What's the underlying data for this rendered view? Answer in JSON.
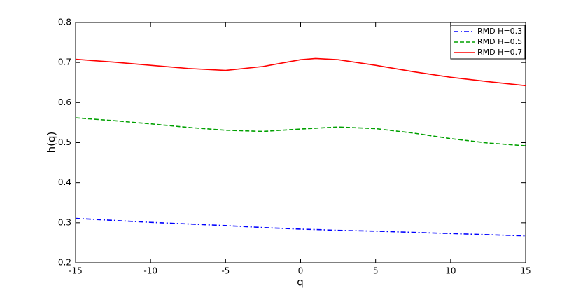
{
  "chart_data": {
    "type": "line",
    "xlabel": "q",
    "ylabel": "h(q)",
    "x": [
      -15,
      -12.5,
      -10,
      -7.5,
      -5,
      -2.5,
      0,
      1,
      2.5,
      5,
      7.5,
      10,
      12.5,
      15
    ],
    "series": [
      {
        "name": "RMD H=0.3",
        "color": "#0000ff",
        "dash": "dashdot",
        "values": [
          0.311,
          0.306,
          0.301,
          0.297,
          0.293,
          0.288,
          0.284,
          0.283,
          0.281,
          0.279,
          0.276,
          0.273,
          0.27,
          0.267
        ]
      },
      {
        "name": "RMD H=0.5",
        "color": "#00a000",
        "dash": "dashed",
        "values": [
          0.562,
          0.555,
          0.547,
          0.538,
          0.531,
          0.528,
          0.534,
          0.536,
          0.539,
          0.535,
          0.524,
          0.51,
          0.499,
          0.492
        ]
      },
      {
        "name": "RMD H=0.7",
        "color": "#ff0000",
        "dash": "solid",
        "values": [
          0.708,
          0.701,
          0.693,
          0.685,
          0.68,
          0.69,
          0.707,
          0.71,
          0.707,
          0.693,
          0.677,
          0.663,
          0.652,
          0.642
        ]
      }
    ],
    "xlim": [
      -15,
      15
    ],
    "xticks": [
      -15,
      -10,
      -5,
      0,
      5,
      10,
      15
    ],
    "ylim": [
      0.2,
      0.8
    ],
    "yticks": [
      0.2,
      0.3,
      0.4,
      0.5,
      0.6,
      0.7,
      0.8
    ],
    "legend": "northeast"
  }
}
